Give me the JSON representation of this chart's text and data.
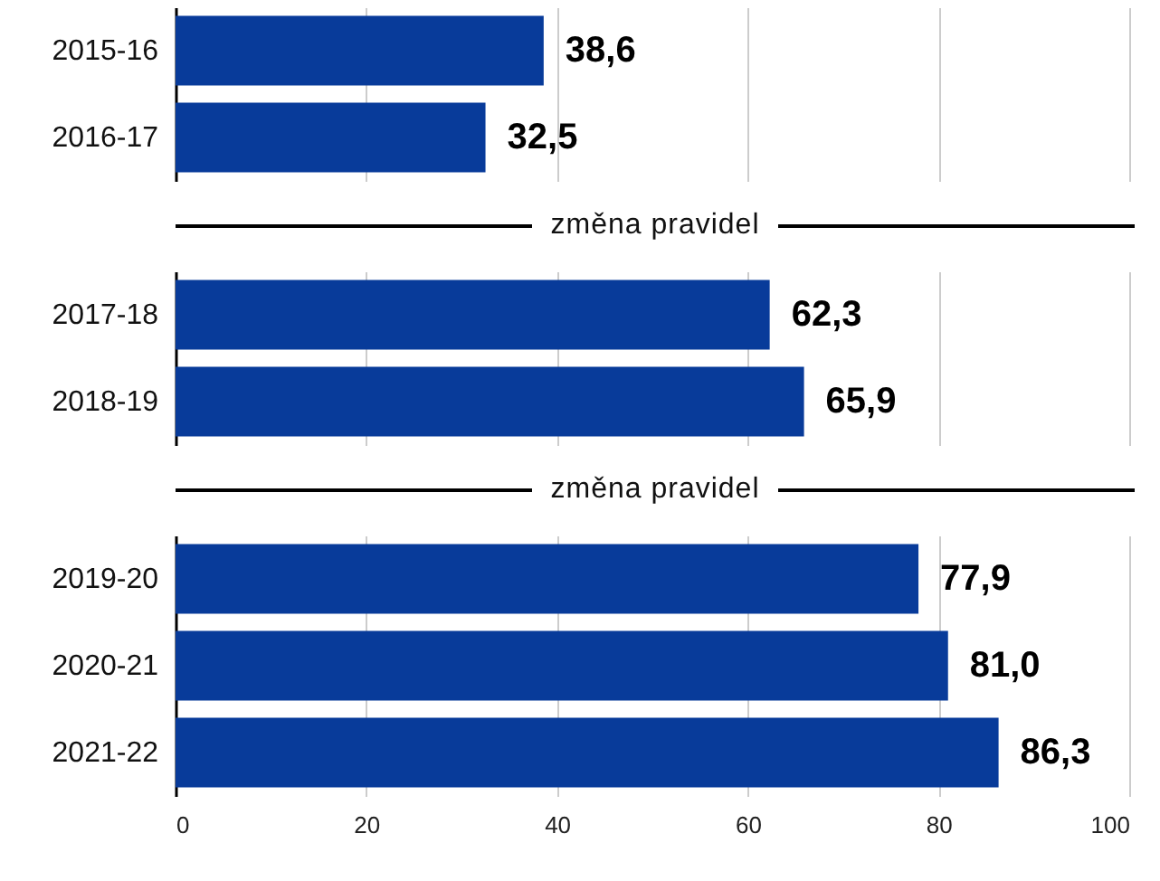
{
  "chart_data": [
    {
      "type": "bar",
      "orientation": "horizontal",
      "categories": [
        "2015-16",
        "2016-17"
      ],
      "values": [
        38.6,
        32.5
      ],
      "value_labels": [
        "38,6",
        "32,5"
      ],
      "color": "#083b9a",
      "xlim": [
        0,
        100
      ],
      "xticks": [
        0,
        20,
        40,
        60,
        80,
        100
      ],
      "grid": "x",
      "tick_labels": "y"
    },
    {
      "type": "bar",
      "orientation": "horizontal",
      "title": "změna pravidel",
      "categories": [
        "2017-18",
        "2018-19"
      ],
      "values": [
        62.3,
        65.9
      ],
      "value_labels": [
        "62,3",
        "65,9"
      ],
      "color": "#083b9a",
      "xlim": [
        0,
        100
      ],
      "xticks": [
        0,
        20,
        40,
        60,
        80,
        100
      ],
      "grid": "x",
      "tick_labels": "y"
    },
    {
      "type": "bar",
      "orientation": "horizontal",
      "title": "změna pravidel",
      "categories": [
        "2019-20",
        "2020-21",
        "2021-22"
      ],
      "values": [
        77.9,
        81.0,
        86.3
      ],
      "value_labels": [
        "77,9",
        "81,0",
        "86,3"
      ],
      "color": "#083b9a",
      "xlim": [
        0,
        100
      ],
      "xticks": [
        0,
        20,
        40,
        60,
        80,
        100
      ],
      "grid": "x"
    }
  ]
}
